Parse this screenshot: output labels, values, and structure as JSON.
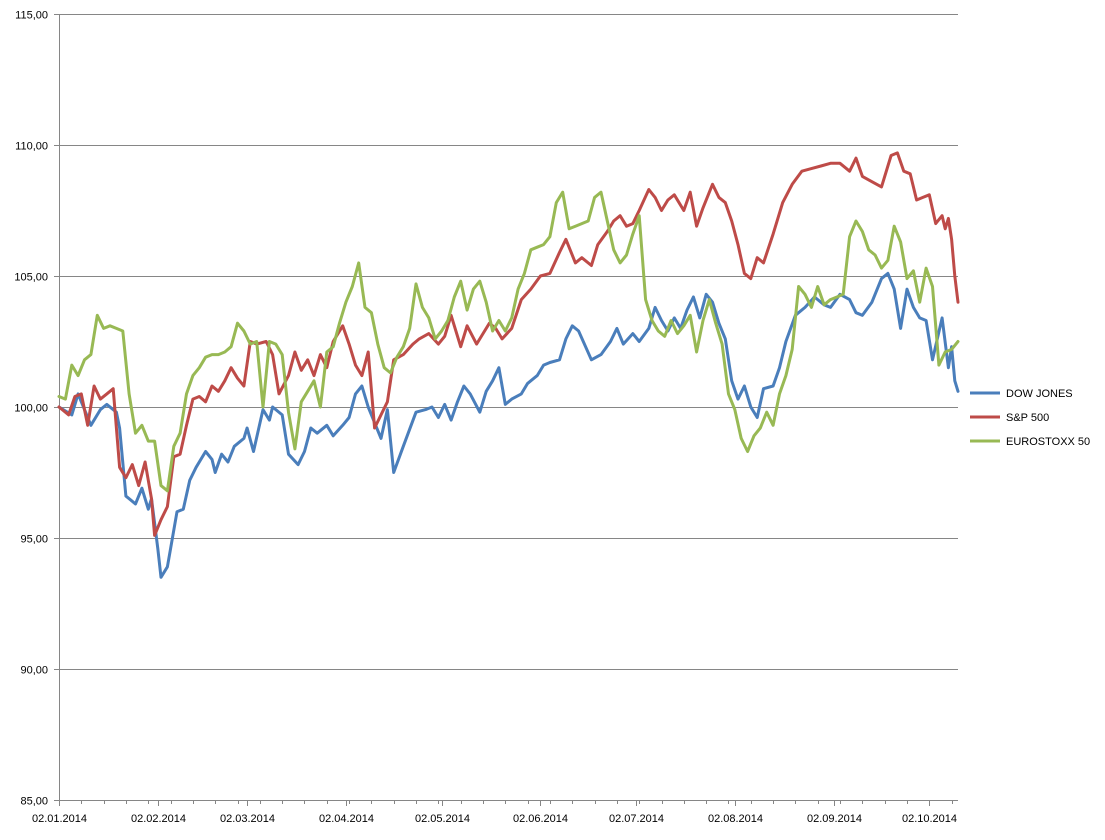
{
  "chart_data": {
    "type": "line",
    "title": "",
    "xlabel": "",
    "ylabel": "",
    "ylim": [
      85,
      115
    ],
    "yticks": [
      85,
      90,
      95,
      100,
      105,
      110,
      115
    ],
    "ytick_labels": [
      "85,00",
      "90,00",
      "95,00",
      "100,00",
      "105,00",
      "110,00",
      "115,00"
    ],
    "xlim": [
      "2014-01-02",
      "2014-10-11"
    ],
    "xtick_dates": [
      "2014-01-02",
      "2014-02-02",
      "2014-03-02",
      "2014-04-02",
      "2014-05-02",
      "2014-06-02",
      "2014-07-02",
      "2014-08-02",
      "2014-09-02",
      "2014-10-02"
    ],
    "xtick_labels": [
      "02.01.2014",
      "02.02.2014",
      "02.03.2014",
      "02.04.2014",
      "02.05.2014",
      "02.06.2014",
      "02.07.2014",
      "02.08.2014",
      "02.09.2014",
      "02.10.2014"
    ],
    "grid": "horizontal",
    "legend_position": "right",
    "series": [
      {
        "name": "DOW JONES",
        "color": "#4a7ebb",
        "x": [
          "2014-01-02",
          "2014-01-06",
          "2014-01-08",
          "2014-01-10",
          "2014-01-12",
          "2014-01-15",
          "2014-01-17",
          "2014-01-20",
          "2014-01-21",
          "2014-01-23",
          "2014-01-26",
          "2014-01-28",
          "2014-01-30",
          "2014-01-31",
          "2014-02-02",
          "2014-02-03",
          "2014-02-05",
          "2014-02-06",
          "2014-02-08",
          "2014-02-10",
          "2014-02-12",
          "2014-02-14",
          "2014-02-17",
          "2014-02-19",
          "2014-02-20",
          "2014-02-22",
          "2014-02-24",
          "2014-02-26",
          "2014-03-01",
          "2014-03-02",
          "2014-03-04",
          "2014-03-07",
          "2014-03-09",
          "2014-03-10",
          "2014-03-13",
          "2014-03-15",
          "2014-03-18",
          "2014-03-20",
          "2014-03-22",
          "2014-03-24",
          "2014-03-27",
          "2014-03-29",
          "2014-04-01",
          "2014-04-03",
          "2014-04-05",
          "2014-04-07",
          "2014-04-09",
          "2014-04-11",
          "2014-04-13",
          "2014-04-15",
          "2014-04-17",
          "2014-04-20",
          "2014-04-24",
          "2014-04-27",
          "2014-04-29",
          "2014-05-01",
          "2014-05-03",
          "2014-05-05",
          "2014-05-07",
          "2014-05-09",
          "2014-05-11",
          "2014-05-14",
          "2014-05-16",
          "2014-05-18",
          "2014-05-20",
          "2014-05-22",
          "2014-05-24",
          "2014-05-27",
          "2014-05-29",
          "2014-06-01",
          "2014-06-03",
          "2014-06-05",
          "2014-06-08",
          "2014-06-10",
          "2014-06-12",
          "2014-06-14",
          "2014-06-18",
          "2014-06-21",
          "2014-06-24",
          "2014-06-26",
          "2014-06-28",
          "2014-07-01",
          "2014-07-03",
          "2014-07-06",
          "2014-07-08",
          "2014-07-10",
          "2014-07-12",
          "2014-07-14",
          "2014-07-16",
          "2014-07-18",
          "2014-07-20",
          "2014-07-22",
          "2014-07-24",
          "2014-07-26",
          "2014-07-28",
          "2014-07-30",
          "2014-08-01",
          "2014-08-03",
          "2014-08-05",
          "2014-08-07",
          "2014-08-09",
          "2014-08-11",
          "2014-08-14",
          "2014-08-16",
          "2014-08-18",
          "2014-08-21",
          "2014-08-24",
          "2014-08-27",
          "2014-08-30",
          "2014-09-01",
          "2014-09-04",
          "2014-09-07",
          "2014-09-09",
          "2014-09-11",
          "2014-09-14",
          "2014-09-17",
          "2014-09-19",
          "2014-09-21",
          "2014-09-23",
          "2014-09-25",
          "2014-09-27",
          "2014-09-29",
          "2014-10-01",
          "2014-10-03",
          "2014-10-06",
          "2014-10-08",
          "2014-10-09",
          "2014-10-10",
          "2014-10-11"
        ],
        "values": [
          100.0,
          99.7,
          100.5,
          99.9,
          99.3,
          99.9,
          100.1,
          99.8,
          99.2,
          96.6,
          96.3,
          96.9,
          96.1,
          96.5,
          94.6,
          93.5,
          93.9,
          94.6,
          96.0,
          96.1,
          97.2,
          97.7,
          98.3,
          98.0,
          97.5,
          98.2,
          97.9,
          98.5,
          98.8,
          99.2,
          98.3,
          99.9,
          99.5,
          100.0,
          99.7,
          98.2,
          97.8,
          98.3,
          99.2,
          99.0,
          99.3,
          98.9,
          99.3,
          99.6,
          100.5,
          100.8,
          100.0,
          99.4,
          98.8,
          99.9,
          97.5,
          98.5,
          99.8,
          99.9,
          100.0,
          99.6,
          100.1,
          99.5,
          100.2,
          100.8,
          100.5,
          99.8,
          100.6,
          101.0,
          101.5,
          100.1,
          100.3,
          100.5,
          100.9,
          101.2,
          101.6,
          101.7,
          101.8,
          102.6,
          103.1,
          102.9,
          101.8,
          102.0,
          102.5,
          103.0,
          102.4,
          102.8,
          102.5,
          103.0,
          103.8,
          103.3,
          102.9,
          103.4,
          103.0,
          103.7,
          104.2,
          103.4,
          104.3,
          104.0,
          103.2,
          102.6,
          101.0,
          100.3,
          100.8,
          100.0,
          99.6,
          100.7,
          100.8,
          101.5,
          102.5,
          103.5,
          103.8,
          104.2,
          103.9,
          103.8,
          104.3,
          104.1,
          103.6,
          103.5,
          104.0,
          104.9,
          105.1,
          104.5,
          103.0,
          104.5,
          103.8,
          103.4,
          103.3,
          101.8,
          103.4,
          101.5,
          102.3,
          101.0,
          100.6
        ]
      },
      {
        "name": "S&P 500",
        "color": "#be4b48",
        "x": [
          "2014-01-02",
          "2014-01-05",
          "2014-01-07",
          "2014-01-09",
          "2014-01-11",
          "2014-01-13",
          "2014-01-15",
          "2014-01-17",
          "2014-01-19",
          "2014-01-21",
          "2014-01-23",
          "2014-01-25",
          "2014-01-27",
          "2014-01-29",
          "2014-01-31",
          "2014-02-01",
          "2014-02-03",
          "2014-02-05",
          "2014-02-07",
          "2014-02-09",
          "2014-02-11",
          "2014-02-13",
          "2014-02-15",
          "2014-02-17",
          "2014-02-19",
          "2014-02-21",
          "2014-02-23",
          "2014-02-25",
          "2014-02-27",
          "2014-03-01",
          "2014-03-03",
          "2014-03-05",
          "2014-03-08",
          "2014-03-10",
          "2014-03-12",
          "2014-03-15",
          "2014-03-17",
          "2014-03-19",
          "2014-03-21",
          "2014-03-23",
          "2014-03-25",
          "2014-03-27",
          "2014-03-29",
          "2014-04-01",
          "2014-04-03",
          "2014-04-05",
          "2014-04-07",
          "2014-04-09",
          "2014-04-11",
          "2014-04-13",
          "2014-04-15",
          "2014-04-17",
          "2014-04-20",
          "2014-04-23",
          "2014-04-25",
          "2014-04-28",
          "2014-05-01",
          "2014-05-03",
          "2014-05-05",
          "2014-05-08",
          "2014-05-10",
          "2014-05-13",
          "2014-05-15",
          "2014-05-17",
          "2014-05-19",
          "2014-05-21",
          "2014-05-24",
          "2014-05-27",
          "2014-05-30",
          "2014-06-02",
          "2014-06-05",
          "2014-06-08",
          "2014-06-10",
          "2014-06-13",
          "2014-06-15",
          "2014-06-18",
          "2014-06-20",
          "2014-06-23",
          "2014-06-25",
          "2014-06-27",
          "2014-06-29",
          "2014-07-01",
          "2014-07-03",
          "2014-07-06",
          "2014-07-08",
          "2014-07-10",
          "2014-07-12",
          "2014-07-14",
          "2014-07-17",
          "2014-07-19",
          "2014-07-21",
          "2014-07-23",
          "2014-07-26",
          "2014-07-28",
          "2014-07-30",
          "2014-08-01",
          "2014-08-03",
          "2014-08-05",
          "2014-08-07",
          "2014-08-09",
          "2014-08-11",
          "2014-08-14",
          "2014-08-17",
          "2014-08-20",
          "2014-08-23",
          "2014-08-26",
          "2014-08-29",
          "2014-09-01",
          "2014-09-04",
          "2014-09-07",
          "2014-09-09",
          "2014-09-11",
          "2014-09-14",
          "2014-09-17",
          "2014-09-20",
          "2014-09-22",
          "2014-09-24",
          "2014-09-26",
          "2014-09-28",
          "2014-09-30",
          "2014-10-02",
          "2014-10-04",
          "2014-10-06",
          "2014-10-07",
          "2014-10-08",
          "2014-10-09",
          "2014-10-10",
          "2014-10-11"
        ],
        "values": [
          100.0,
          99.7,
          100.4,
          100.5,
          99.3,
          100.8,
          100.3,
          100.5,
          100.7,
          97.7,
          97.3,
          97.8,
          97.0,
          97.9,
          96.5,
          95.1,
          95.7,
          96.2,
          98.1,
          98.2,
          99.3,
          100.3,
          100.4,
          100.2,
          100.8,
          100.6,
          101.0,
          101.5,
          101.1,
          100.8,
          102.5,
          102.4,
          102.5,
          102.0,
          100.5,
          101.2,
          102.1,
          101.4,
          101.8,
          101.2,
          102.0,
          101.5,
          102.5,
          103.1,
          102.4,
          101.6,
          101.2,
          102.1,
          99.2,
          99.7,
          100.2,
          101.8,
          102.0,
          102.4,
          102.6,
          102.8,
          102.4,
          102.7,
          103.5,
          102.3,
          103.1,
          102.4,
          102.8,
          103.2,
          103.0,
          102.6,
          103.0,
          104.1,
          104.5,
          105.0,
          105.1,
          105.9,
          106.4,
          105.5,
          105.7,
          105.4,
          106.2,
          106.7,
          107.1,
          107.3,
          106.9,
          107.0,
          107.5,
          108.3,
          108.0,
          107.5,
          107.9,
          108.1,
          107.5,
          108.2,
          106.9,
          107.6,
          108.5,
          108.0,
          107.8,
          107.1,
          106.2,
          105.1,
          104.9,
          105.7,
          105.5,
          106.6,
          107.8,
          108.5,
          109.0,
          109.1,
          109.2,
          109.3,
          109.3,
          109.0,
          109.5,
          108.8,
          108.6,
          108.4,
          109.6,
          109.7,
          109.0,
          108.9,
          107.9,
          108.0,
          108.1,
          107.0,
          107.3,
          106.8,
          107.2,
          106.4,
          105.0,
          104.0
        ]
      },
      {
        "name": "EUROSTOXX 50",
        "color": "#98b954",
        "x": [
          "2014-01-02",
          "2014-01-04",
          "2014-01-06",
          "2014-01-08",
          "2014-01-10",
          "2014-01-12",
          "2014-01-14",
          "2014-01-16",
          "2014-01-18",
          "2014-01-20",
          "2014-01-22",
          "2014-01-24",
          "2014-01-26",
          "2014-01-28",
          "2014-01-30",
          "2014-02-01",
          "2014-02-03",
          "2014-02-05",
          "2014-02-07",
          "2014-02-09",
          "2014-02-11",
          "2014-02-13",
          "2014-02-15",
          "2014-02-17",
          "2014-02-19",
          "2014-02-21",
          "2014-02-23",
          "2014-02-25",
          "2014-02-27",
          "2014-03-01",
          "2014-03-03",
          "2014-03-05",
          "2014-03-07",
          "2014-03-09",
          "2014-03-11",
          "2014-03-13",
          "2014-03-15",
          "2014-03-17",
          "2014-03-19",
          "2014-03-21",
          "2014-03-23",
          "2014-03-25",
          "2014-03-27",
          "2014-03-29",
          "2014-03-31",
          "2014-04-02",
          "2014-04-04",
          "2014-04-06",
          "2014-04-08",
          "2014-04-10",
          "2014-04-12",
          "2014-04-14",
          "2014-04-16",
          "2014-04-18",
          "2014-04-20",
          "2014-04-22",
          "2014-04-24",
          "2014-04-26",
          "2014-04-28",
          "2014-04-30",
          "2014-05-02",
          "2014-05-04",
          "2014-05-06",
          "2014-05-08",
          "2014-05-10",
          "2014-05-12",
          "2014-05-14",
          "2014-05-16",
          "2014-05-18",
          "2014-05-20",
          "2014-05-22",
          "2014-05-24",
          "2014-05-26",
          "2014-05-28",
          "2014-05-30",
          "2014-06-01",
          "2014-06-03",
          "2014-06-05",
          "2014-06-07",
          "2014-06-09",
          "2014-06-11",
          "2014-06-13",
          "2014-06-15",
          "2014-06-17",
          "2014-06-19",
          "2014-06-21",
          "2014-06-23",
          "2014-06-25",
          "2014-06-27",
          "2014-06-29",
          "2014-07-01",
          "2014-07-03",
          "2014-07-05",
          "2014-07-07",
          "2014-07-09",
          "2014-07-11",
          "2014-07-13",
          "2014-07-15",
          "2014-07-17",
          "2014-07-19",
          "2014-07-21",
          "2014-07-23",
          "2014-07-25",
          "2014-07-27",
          "2014-07-29",
          "2014-07-31",
          "2014-08-02",
          "2014-08-04",
          "2014-08-06",
          "2014-08-08",
          "2014-08-10",
          "2014-08-12",
          "2014-08-14",
          "2014-08-16",
          "2014-08-18",
          "2014-08-20",
          "2014-08-22",
          "2014-08-24",
          "2014-08-26",
          "2014-08-28",
          "2014-08-30",
          "2014-09-01",
          "2014-09-03",
          "2014-09-05",
          "2014-09-07",
          "2014-09-09",
          "2014-09-11",
          "2014-09-13",
          "2014-09-15",
          "2014-09-17",
          "2014-09-19",
          "2014-09-21",
          "2014-09-23",
          "2014-09-25",
          "2014-09-27",
          "2014-09-29",
          "2014-10-01",
          "2014-10-03",
          "2014-10-05",
          "2014-10-07",
          "2014-10-09",
          "2014-10-11"
        ],
        "values": [
          100.4,
          100.3,
          101.6,
          101.2,
          101.8,
          102.0,
          103.5,
          103.0,
          103.1,
          103.0,
          102.9,
          100.5,
          99.0,
          99.3,
          98.7,
          98.7,
          97.0,
          96.8,
          98.5,
          99.0,
          100.5,
          101.2,
          101.5,
          101.9,
          102.0,
          102.0,
          102.1,
          102.3,
          103.2,
          102.9,
          102.4,
          102.5,
          100.0,
          102.5,
          102.4,
          102.0,
          99.8,
          98.4,
          100.2,
          100.6,
          101.0,
          100.0,
          102.1,
          102.3,
          103.2,
          104.0,
          104.6,
          105.5,
          103.8,
          103.6,
          102.4,
          101.5,
          101.3,
          101.9,
          102.3,
          103.0,
          104.7,
          103.8,
          103.4,
          102.6,
          102.9,
          103.3,
          104.2,
          104.8,
          103.7,
          104.5,
          104.8,
          104.0,
          102.9,
          103.3,
          102.9,
          103.4,
          104.5,
          105.1,
          106.0,
          106.1,
          106.2,
          106.5,
          107.8,
          108.2,
          106.8,
          106.9,
          107.0,
          107.1,
          108.0,
          108.2,
          107.1,
          106.0,
          105.5,
          105.8,
          106.6,
          107.3,
          104.1,
          103.3,
          102.9,
          102.7,
          103.3,
          102.8,
          103.1,
          103.5,
          102.1,
          103.3,
          104.1,
          103.2,
          102.4,
          100.5,
          99.9,
          98.8,
          98.3,
          98.9,
          99.2,
          99.8,
          99.3,
          100.5,
          101.2,
          102.2,
          104.6,
          104.3,
          103.8,
          104.6,
          103.9,
          104.1,
          104.2,
          104.3,
          106.5,
          107.1,
          106.7,
          106.0,
          105.8,
          105.3,
          105.6,
          106.9,
          106.3,
          104.9,
          105.2,
          104.0,
          105.3,
          104.6,
          101.6,
          102.1,
          102.2,
          102.5
        ]
      }
    ]
  }
}
